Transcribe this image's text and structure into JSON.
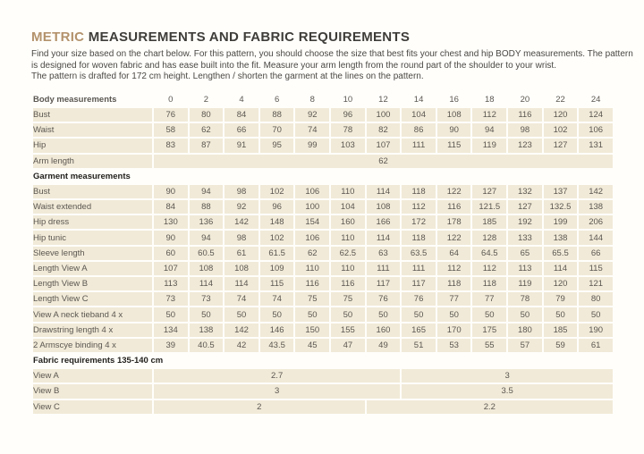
{
  "colors": {
    "accent": "#b3926c",
    "title": "#3f3d3a",
    "intro": "#4a4844",
    "cell_bg": "#f1ead8",
    "table_text": "#5b5751",
    "strong_text": "#23211e",
    "page_bg": "#fffefb"
  },
  "header": {
    "title_accent": "METRIC",
    "title_rest": " MEASUREMENTS AND FABRIC REQUIREMENTS"
  },
  "intro": {
    "line1": "Find your size based on the chart below. For this pattern, you should choose the size that best fits your chest and hip BODY measurements. The pattern",
    "line2": "is designed for woven fabric and has ease built into the fit. Measure your arm length from the round part of the shoulder to your wrist.",
    "line3": "The pattern is drafted for 172 cm height. Lengthen / shorten the garment at the lines on the pattern."
  },
  "table": {
    "header_label": "Body measurements",
    "sizes": [
      "0",
      "2",
      "4",
      "6",
      "8",
      "10",
      "12",
      "14",
      "16",
      "18",
      "20",
      "22",
      "24"
    ],
    "sections": [
      {
        "name": null,
        "rows": [
          {
            "label": "Bust",
            "values": [
              "76",
              "80",
              "84",
              "88",
              "92",
              "96",
              "100",
              "104",
              "108",
              "112",
              "116",
              "120",
              "124"
            ]
          },
          {
            "label": "Waist",
            "values": [
              "58",
              "62",
              "66",
              "70",
              "74",
              "78",
              "82",
              "86",
              "90",
              "94",
              "98",
              "102",
              "106"
            ]
          },
          {
            "label": "Hip",
            "values": [
              "83",
              "87",
              "91",
              "95",
              "99",
              "103",
              "107",
              "111",
              "115",
              "119",
              "123",
              "127",
              "131"
            ]
          },
          {
            "label": "Arm length",
            "merged": [
              {
                "span": 13,
                "value": "62"
              }
            ]
          }
        ]
      },
      {
        "name": "Garment measurements",
        "rows": [
          {
            "label": "Bust",
            "values": [
              "90",
              "94",
              "98",
              "102",
              "106",
              "110",
              "114",
              "118",
              "122",
              "127",
              "132",
              "137",
              "142"
            ]
          },
          {
            "label": "Waist extended",
            "values": [
              "84",
              "88",
              "92",
              "96",
              "100",
              "104",
              "108",
              "112",
              "116",
              "121.5",
              "127",
              "132.5",
              "138"
            ]
          },
          {
            "label": "Hip dress",
            "values": [
              "130",
              "136",
              "142",
              "148",
              "154",
              "160",
              "166",
              "172",
              "178",
              "185",
              "192",
              "199",
              "206"
            ]
          },
          {
            "label": "Hip tunic",
            "values": [
              "90",
              "94",
              "98",
              "102",
              "106",
              "110",
              "114",
              "118",
              "122",
              "128",
              "133",
              "138",
              "144"
            ]
          },
          {
            "label": "Sleeve length",
            "values": [
              "60",
              "60.5",
              "61",
              "61.5",
              "62",
              "62.5",
              "63",
              "63.5",
              "64",
              "64.5",
              "65",
              "65.5",
              "66"
            ]
          },
          {
            "label": "Length View A",
            "values": [
              "107",
              "108",
              "108",
              "109",
              "110",
              "110",
              "111",
              "111",
              "112",
              "112",
              "113",
              "114",
              "115"
            ]
          },
          {
            "label": "Length View B",
            "values": [
              "113",
              "114",
              "114",
              "115",
              "116",
              "116",
              "117",
              "117",
              "118",
              "118",
              "119",
              "120",
              "121"
            ]
          },
          {
            "label": "Length View C",
            "values": [
              "73",
              "73",
              "74",
              "74",
              "75",
              "75",
              "76",
              "76",
              "77",
              "77",
              "78",
              "79",
              "80"
            ]
          },
          {
            "label": "View A neck tieband 4 x",
            "values": [
              "50",
              "50",
              "50",
              "50",
              "50",
              "50",
              "50",
              "50",
              "50",
              "50",
              "50",
              "50",
              "50"
            ]
          },
          {
            "label": "Drawstring length 4 x",
            "values": [
              "134",
              "138",
              "142",
              "146",
              "150",
              "155",
              "160",
              "165",
              "170",
              "175",
              "180",
              "185",
              "190"
            ]
          },
          {
            "label": "2 Armscye binding 4 x",
            "values": [
              "39",
              "40.5",
              "42",
              "43.5",
              "45",
              "47",
              "49",
              "51",
              "53",
              "55",
              "57",
              "59",
              "61"
            ]
          }
        ]
      },
      {
        "name": "Fabric requirements 135-140 cm",
        "rows": [
          {
            "label": "View A",
            "merged": [
              {
                "span": 7,
                "value": "2.7"
              },
              {
                "span": 6,
                "value": "3"
              }
            ]
          },
          {
            "label": "View B",
            "merged": [
              {
                "span": 7,
                "value": "3"
              },
              {
                "span": 6,
                "value": "3.5"
              }
            ]
          },
          {
            "label": "View C",
            "merged": [
              {
                "span": 6,
                "value": "2"
              },
              {
                "span": 7,
                "value": "2.2"
              }
            ]
          }
        ]
      }
    ]
  }
}
